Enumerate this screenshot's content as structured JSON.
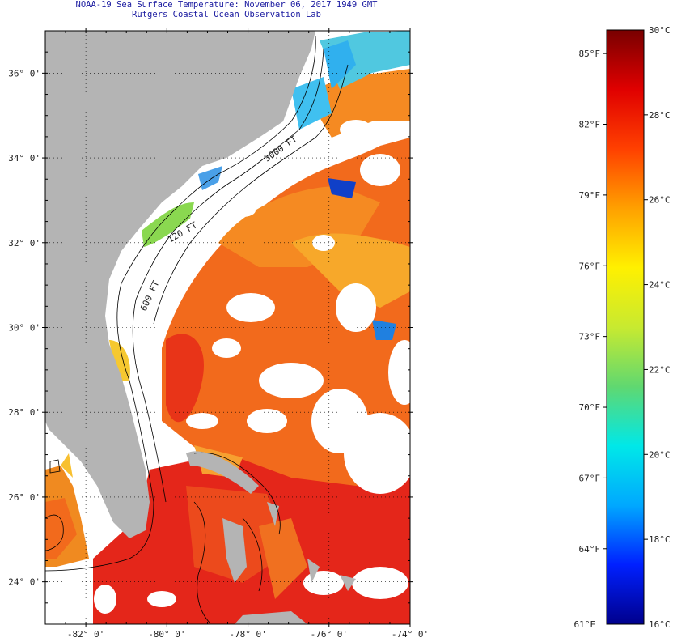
{
  "title": {
    "line1": "NOAA-19 Sea Surface Temperature:  November 06, 2017 1949 GMT",
    "line2": "Rutgers Coastal Ocean Observation Lab"
  },
  "map": {
    "lat_ticks": [
      {
        "value": 36,
        "label": "36° 0'"
      },
      {
        "value": 34,
        "label": "34° 0'"
      },
      {
        "value": 32,
        "label": "32° 0'"
      },
      {
        "value": 30,
        "label": "30° 0'"
      },
      {
        "value": 28,
        "label": "28° 0'"
      },
      {
        "value": 26,
        "label": "26° 0'"
      },
      {
        "value": 24,
        "label": "24° 0'"
      }
    ],
    "lon_ticks": [
      {
        "value": -82,
        "label": "-82° 0'"
      },
      {
        "value": -80,
        "label": "-80° 0'"
      },
      {
        "value": -78,
        "label": "-78° 0'"
      },
      {
        "value": -76,
        "label": "-76° 0'"
      },
      {
        "value": -74,
        "label": "-74° 0'"
      }
    ],
    "lat_range": [
      23,
      37
    ],
    "lon_range": [
      -83,
      -74
    ],
    "grid": "dotted",
    "contour_labels": [
      "120 FT",
      "600 FT",
      "3000 FT"
    ],
    "colors": {
      "land": "#b4b4b4",
      "no_data": "#ffffff",
      "contour": "#000000"
    }
  },
  "colorbar": {
    "f_labels": [
      "85°F",
      "82°F",
      "79°F",
      "76°F",
      "73°F",
      "70°F",
      "67°F",
      "64°F",
      "61°F"
    ],
    "c_labels": [
      "30°C",
      "28°C",
      "26°C",
      "24°C",
      "22°C",
      "20°C",
      "18°C",
      "16°C"
    ],
    "range_c": [
      16,
      30
    ],
    "stops": [
      "#00008c",
      "#0020ff",
      "#00a8ff",
      "#00e8e8",
      "#60d870",
      "#c8ea30",
      "#fff000",
      "#ffa000",
      "#ff4000",
      "#e00000",
      "#780000"
    ]
  }
}
